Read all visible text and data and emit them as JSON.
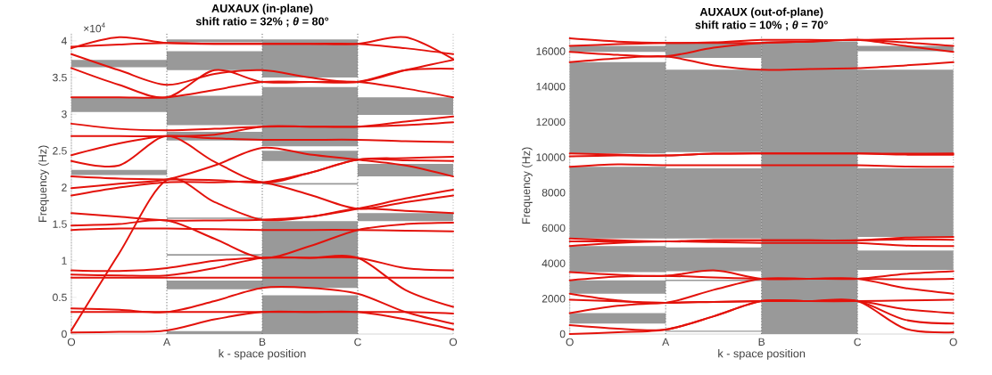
{
  "chart_data": [
    {
      "type": "line",
      "title": "AUXAUX (in-plane)",
      "subtitle": "shift ratio = 32%  ;  *θ* = 80°",
      "xlabel": "k - space position",
      "ylabel": "Frequency (Hz)",
      "annotations": [
        "×10$^{4}$"
      ],
      "ylim": [
        0,
        4.1
      ],
      "categories": [
        "O",
        null,
        "A",
        null,
        "B",
        null,
        "C",
        null,
        "O"
      ],
      "yticks": [
        0,
        0.5,
        1,
        1.5,
        2,
        2.5,
        3,
        3.5,
        4
      ],
      "line_style": "solid",
      "grid": "x",
      "series": [
        {
          "type": "bar",
          "color": "#999999",
          "base": [
            null,
            3.64,
            null,
            3.98,
            null,
            3.5,
            null,
            2.99,
            null
          ],
          "values": [
            null,
            0.1,
            null,
            0.04,
            null,
            0.52,
            null,
            0.24,
            null
          ]
        },
        {
          "type": "bar",
          "color": "#999999",
          "base": [
            null,
            3.03,
            null,
            3.6,
            null,
            2.56,
            null,
            2.15,
            null
          ],
          "values": [
            null,
            0.2,
            null,
            0.26,
            null,
            0.81,
            null,
            0.17,
            null
          ]
        },
        {
          "type": "bar",
          "color": "#999999",
          "base": [
            null,
            2.17,
            null,
            2.85,
            null,
            2.36,
            null,
            1.54,
            null
          ],
          "values": [
            null,
            0.07,
            null,
            0.4,
            null,
            0.14,
            null,
            0.11,
            null
          ]
        },
        {
          "type": "bar",
          "color": "#999999",
          "base": [
            null,
            null,
            null,
            2.64,
            null,
            2.04,
            null,
            null,
            null
          ],
          "values": [
            null,
            null,
            null,
            0.12,
            null,
            0.02,
            null,
            null,
            null
          ]
        },
        {
          "type": "bar",
          "color": "#999999",
          "base": [
            null,
            null,
            null,
            1.57,
            null,
            0.63,
            null,
            null,
            null
          ],
          "values": [
            null,
            null,
            null,
            0.02,
            null,
            0.91,
            null,
            null,
            null
          ]
        },
        {
          "type": "bar",
          "color": "#999999",
          "base": [
            null,
            null,
            null,
            1.07,
            null,
            0,
            null,
            null,
            null
          ],
          "values": [
            null,
            null,
            null,
            0.02,
            null,
            0.53,
            null,
            null,
            null
          ]
        },
        {
          "type": "bar",
          "color": "#999999",
          "base": [
            null,
            null,
            null,
            0.61,
            null,
            null,
            null,
            null,
            null
          ],
          "values": [
            null,
            null,
            null,
            0.12,
            null,
            null,
            null,
            null,
            null
          ]
        },
        {
          "type": "bar",
          "color": "#999999",
          "base": [
            null,
            null,
            null,
            0,
            null,
            null,
            null,
            null,
            null
          ],
          "values": [
            null,
            null,
            null,
            0.04,
            null,
            null,
            null,
            null,
            null
          ]
        },
        {
          "color": "#e3120b",
          "values": [
            0.02,
            0.03,
            0.05,
            0.2,
            0.3,
            0.3,
            0.3,
            0.2,
            0.06
          ]
        },
        {
          "color": "#e3120b",
          "values": [
            0.05,
            1.1,
            2.1,
            1.8,
            1.56,
            1.6,
            1.71,
            1.85,
            1.97
          ]
        },
        {
          "color": "#e3120b",
          "values": [
            0.3,
            0.3,
            0.3,
            0.3,
            0.3,
            0.3,
            0.3,
            0.3,
            0.28
          ]
        },
        {
          "color": "#e3120b",
          "values": [
            0.35,
            0.33,
            0.3,
            0.45,
            0.63,
            0.63,
            0.55,
            0.3,
            0.14
          ]
        },
        {
          "color": "#e3120b",
          "values": [
            0.77,
            0.77,
            0.77,
            0.77,
            0.77,
            0.77,
            0.77,
            0.77,
            0.77
          ]
        },
        {
          "color": "#e3120b",
          "values": [
            0.81,
            0.8,
            0.8,
            0.9,
            1.04,
            1.04,
            1.04,
            0.6,
            0.37
          ]
        },
        {
          "color": "#e3120b",
          "values": [
            0.87,
            0.86,
            0.9,
            1.0,
            1.04,
            1.04,
            1.04,
            0.9,
            0.87
          ]
        },
        {
          "color": "#e3120b",
          "values": [
            1.42,
            1.44,
            1.44,
            1.43,
            1.42,
            1.42,
            1.42,
            1.41,
            1.4
          ]
        },
        {
          "color": "#e3120b",
          "values": [
            1.48,
            1.5,
            1.55,
            1.3,
            1.04,
            1.2,
            1.42,
            1.5,
            1.52
          ]
        },
        {
          "color": "#e3120b",
          "values": [
            1.65,
            1.6,
            1.55,
            1.55,
            1.56,
            1.6,
            1.71,
            1.68,
            1.65
          ]
        },
        {
          "color": "#e3120b",
          "values": [
            1.89,
            2.0,
            2.07,
            2.07,
            2.07,
            1.9,
            1.71,
            1.8,
            1.89
          ]
        },
        {
          "color": "#e3120b",
          "values": [
            1.99,
            2.05,
            2.11,
            2.3,
            2.54,
            2.45,
            2.38,
            2.3,
            2.15
          ]
        },
        {
          "color": "#e3120b",
          "values": [
            2.15,
            2.12,
            2.11,
            2.1,
            2.07,
            2.2,
            2.38,
            2.37,
            2.36
          ]
        },
        {
          "color": "#e3120b",
          "values": [
            2.36,
            2.3,
            2.7,
            2.35,
            2.07,
            2.2,
            2.38,
            2.4,
            2.42
          ]
        },
        {
          "color": "#e3120b",
          "values": [
            2.44,
            2.6,
            2.7,
            2.67,
            2.65,
            2.65,
            2.65,
            2.63,
            2.62
          ]
        },
        {
          "color": "#e3120b",
          "values": [
            2.7,
            2.7,
            2.7,
            2.72,
            2.83,
            2.83,
            2.83,
            2.85,
            2.89
          ]
        },
        {
          "color": "#e3120b",
          "values": [
            2.87,
            2.8,
            2.78,
            2.8,
            2.83,
            2.83,
            2.83,
            2.9,
            2.97
          ]
        },
        {
          "color": "#e3120b",
          "values": [
            3.23,
            3.23,
            3.23,
            3.33,
            3.44,
            3.44,
            3.44,
            3.35,
            3.23
          ]
        },
        {
          "color": "#e3120b",
          "values": [
            3.63,
            3.4,
            3.23,
            3.6,
            3.44,
            3.44,
            3.44,
            3.6,
            3.62
          ]
        },
        {
          "color": "#e3120b",
          "values": [
            3.82,
            3.6,
            3.4,
            3.55,
            3.6,
            3.5,
            3.44,
            3.6,
            3.74
          ]
        },
        {
          "color": "#e3120b",
          "values": [
            3.92,
            3.95,
            3.97,
            3.96,
            3.96,
            3.96,
            3.96,
            3.9,
            3.82
          ]
        },
        {
          "color": "#e3120b",
          "values": [
            3.9,
            4.05,
            3.97,
            3.96,
            3.96,
            3.96,
            3.96,
            4.05,
            3.75
          ]
        }
      ]
    },
    {
      "type": "line",
      "title": "AUXAUX (out-of-plane)",
      "subtitle": "shift ratio = 10%  ;  *θ* = 70°",
      "xlabel": "k - space position",
      "ylabel": "Frequency (Hz)",
      "ylim": [
        0,
        16800
      ],
      "categories": [
        "O",
        null,
        "A",
        null,
        "B",
        null,
        "C",
        null,
        "O"
      ],
      "yticks": [
        0,
        2000,
        4000,
        6000,
        8000,
        10000,
        12000,
        14000,
        16000
      ],
      "line_style": "solid",
      "grid": "x",
      "series": [
        {
          "type": "bar",
          "color": "#999999",
          "base": [
            null,
            590,
            null,
            130,
            null,
            0,
            null,
            3630,
            null
          ],
          "values": [
            null,
            590,
            null,
            60,
            null,
            16560,
            null,
            1100,
            null
          ]
        },
        {
          "type": "bar",
          "color": "#999999",
          "base": [
            null,
            2280,
            null,
            3000,
            null,
            null,
            null,
            5490,
            null
          ],
          "values": [
            null,
            760,
            null,
            80,
            null,
            null,
            null,
            3890,
            null
          ]
        },
        {
          "type": "bar",
          "color": "#999999",
          "base": [
            null,
            3500,
            null,
            3550,
            null,
            null,
            null,
            10220,
            null
          ],
          "values": [
            null,
            1480,
            null,
            1350,
            null,
            null,
            null,
            4730,
            null
          ]
        },
        {
          "type": "bar",
          "color": "#999999",
          "base": [
            null,
            5400,
            null,
            5400,
            null,
            null,
            null,
            16000,
            null
          ],
          "values": [
            null,
            4060,
            null,
            3980,
            null,
            null,
            null,
            300,
            null
          ]
        },
        {
          "type": "bar",
          "color": "#999999",
          "base": [
            null,
            10220,
            null,
            10300,
            null,
            null,
            null,
            null,
            null
          ],
          "values": [
            null,
            5160,
            null,
            4650,
            null,
            null,
            null,
            null,
            null
          ]
        },
        {
          "type": "bar",
          "color": "#999999",
          "base": [
            null,
            15970,
            null,
            15620,
            null,
            null,
            null,
            null,
            null
          ],
          "values": [
            null,
            330,
            null,
            850,
            null,
            null,
            null,
            null,
            null
          ]
        },
        {
          "color": "#e3120b",
          "values": [
            0,
            100,
            250,
            1000,
            1860,
            1860,
            1860,
            300,
            100
          ]
        },
        {
          "color": "#e3120b",
          "values": [
            500,
            300,
            250,
            1000,
            1860,
            1860,
            1860,
            800,
            590
          ]
        },
        {
          "color": "#e3120b",
          "values": [
            1180,
            1600,
            1770,
            1820,
            1860,
            1860,
            1860,
            1400,
            1180
          ]
        },
        {
          "color": "#e3120b",
          "values": [
            1940,
            1850,
            1770,
            1820,
            1860,
            1860,
            1860,
            1900,
            1940
          ]
        },
        {
          "color": "#e3120b",
          "values": [
            2280,
            1900,
            1770,
            2500,
            3130,
            3130,
            3130,
            2600,
            2280
          ]
        },
        {
          "color": "#e3120b",
          "values": [
            3040,
            3250,
            3290,
            3200,
            3130,
            3130,
            3130,
            3100,
            3130
          ]
        },
        {
          "color": "#e3120b",
          "values": [
            3500,
            3350,
            3290,
            3600,
            3130,
            3130,
            3130,
            3400,
            3550
          ]
        },
        {
          "color": "#e3120b",
          "values": [
            4980,
            5150,
            5240,
            5200,
            5150,
            5150,
            5150,
            5000,
            4980
          ]
        },
        {
          "color": "#e3120b",
          "values": [
            5240,
            5240,
            5240,
            5300,
            5300,
            5300,
            5300,
            5350,
            5330
          ]
        },
        {
          "color": "#e3120b",
          "values": [
            5400,
            5300,
            5240,
            5300,
            5300,
            5300,
            5300,
            5450,
            5490
          ]
        },
        {
          "color": "#e3120b",
          "values": [
            9460,
            9600,
            9550,
            9550,
            9550,
            9550,
            9550,
            9480,
            9460
          ]
        },
        {
          "color": "#e3120b",
          "values": [
            10050,
            10100,
            10100,
            10200,
            10220,
            10220,
            10220,
            10150,
            10140
          ]
        },
        {
          "color": "#e3120b",
          "values": [
            10220,
            10150,
            10100,
            10200,
            10220,
            10220,
            10220,
            10200,
            10220
          ]
        },
        {
          "color": "#e3120b",
          "values": [
            15380,
            15600,
            15710,
            15200,
            14950,
            15000,
            15040,
            15200,
            15380
          ]
        },
        {
          "color": "#e3120b",
          "values": [
            15970,
            15800,
            15710,
            16200,
            16470,
            16550,
            16640,
            16300,
            15970
          ]
        },
        {
          "color": "#e3120b",
          "values": [
            16300,
            16400,
            16470,
            16470,
            16470,
            16550,
            16640,
            16500,
            16300
          ]
        },
        {
          "color": "#e3120b",
          "values": [
            16730,
            16550,
            16470,
            16500,
            16640,
            16640,
            16640,
            16700,
            16730
          ]
        }
      ]
    }
  ]
}
